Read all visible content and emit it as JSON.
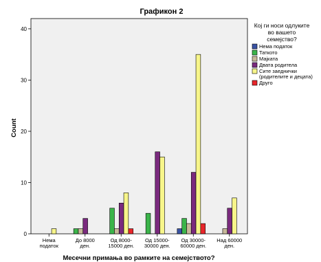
{
  "chart_data": {
    "type": "bar",
    "title": "Графикон 2",
    "xlabel": "Месечни примања во рамките на семејството?",
    "ylabel": "Count",
    "ylim": [
      0,
      42
    ],
    "yticks": [
      0,
      10,
      20,
      30,
      40
    ],
    "grid": false,
    "legend_position": "right",
    "legend_title": [
      "Кој ги носи одлуките",
      "во вашето",
      "семејство?"
    ],
    "categories": [
      [
        "Нема",
        "податок"
      ],
      [
        "До 8000",
        "ден."
      ],
      [
        "Од 8000-",
        "15000 ден."
      ],
      [
        "Од 15000-",
        "30000 ден."
      ],
      [
        "Од 30000-",
        "60000 ден."
      ],
      [
        "Над 60000",
        "ден."
      ]
    ],
    "series": [
      {
        "name": "Нема податок",
        "label_lines": [
          "Нема податок"
        ],
        "color": "#3953a4",
        "values": [
          0,
          0,
          0,
          0,
          1,
          0
        ]
      },
      {
        "name": "Таткото",
        "label_lines": [
          "Таткото"
        ],
        "color": "#3bb44a",
        "values": [
          0,
          1,
          5,
          4,
          3,
          0
        ]
      },
      {
        "name": "Мајката",
        "label_lines": [
          "Мајката"
        ],
        "color": "#c7b89a",
        "values": [
          0,
          1,
          1,
          0,
          2,
          1
        ]
      },
      {
        "name": "Двата родитела",
        "label_lines": [
          "Двата родитела"
        ],
        "color": "#7a2a7e",
        "values": [
          0,
          3,
          6,
          16,
          12,
          5
        ]
      },
      {
        "name": "Сите заедничкиродителите и децата",
        "label_lines": [
          "Сите заеднички",
          "(родителите и децата)"
        ],
        "color": "#f7f58a",
        "values": [
          1,
          0,
          8,
          15,
          35,
          7
        ]
      },
      {
        "name": "Друго",
        "label_lines": [
          "Друго"
        ],
        "color": "#e8262b",
        "values": [
          0,
          0,
          1,
          0,
          2,
          0
        ]
      }
    ]
  }
}
